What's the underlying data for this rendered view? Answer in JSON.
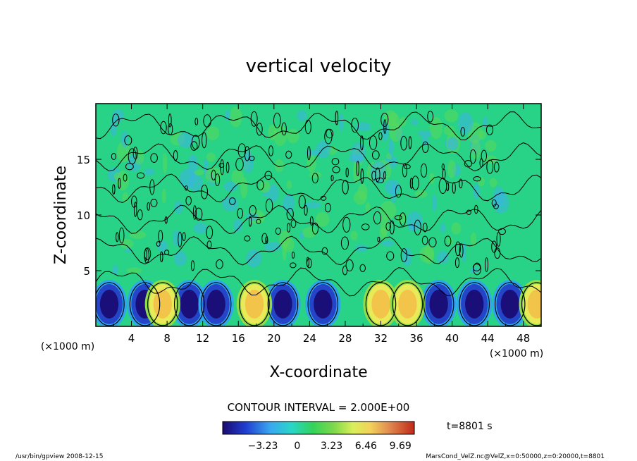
{
  "chart_data": {
    "type": "heatmap",
    "title": "vertical velocity",
    "xlabel": "X-coordinate",
    "ylabel": "Z-coordinate",
    "x_unit_left": "(×1000 m)",
    "x_unit_right": "(×1000 m)",
    "xlim": [
      0,
      50
    ],
    "ylim": [
      0,
      20
    ],
    "x_ticks": [
      "4",
      "8",
      "12",
      "16",
      "20",
      "24",
      "28",
      "32",
      "36",
      "40",
      "44",
      "48"
    ],
    "y_ticks": [
      "5",
      "10",
      "15"
    ],
    "contour_interval_text": "CONTOUR INTERVAL = 2.000E+00",
    "time_text": "t=8801 s",
    "colorbar_ticks": [
      "−3.23",
      "0",
      "3.23",
      "6.46",
      "9.69"
    ],
    "colorbar_range": [
      -7,
      11
    ],
    "footer_left": "/usr/bin/gpview   2008-12-15",
    "footer_right": "MarsCond_VelZ.nc@VelZ,x=0:50000,z=0:20000,t=8801",
    "strong_updrafts_x": [
      7.5,
      17.8,
      32,
      35,
      49.5
    ],
    "strong_downdrafts_x": [
      1.5,
      5.5,
      10.5,
      13.5,
      21,
      25.5,
      38.5,
      42.5,
      46.5
    ],
    "grid": false,
    "legend": "colorbar bottom"
  }
}
